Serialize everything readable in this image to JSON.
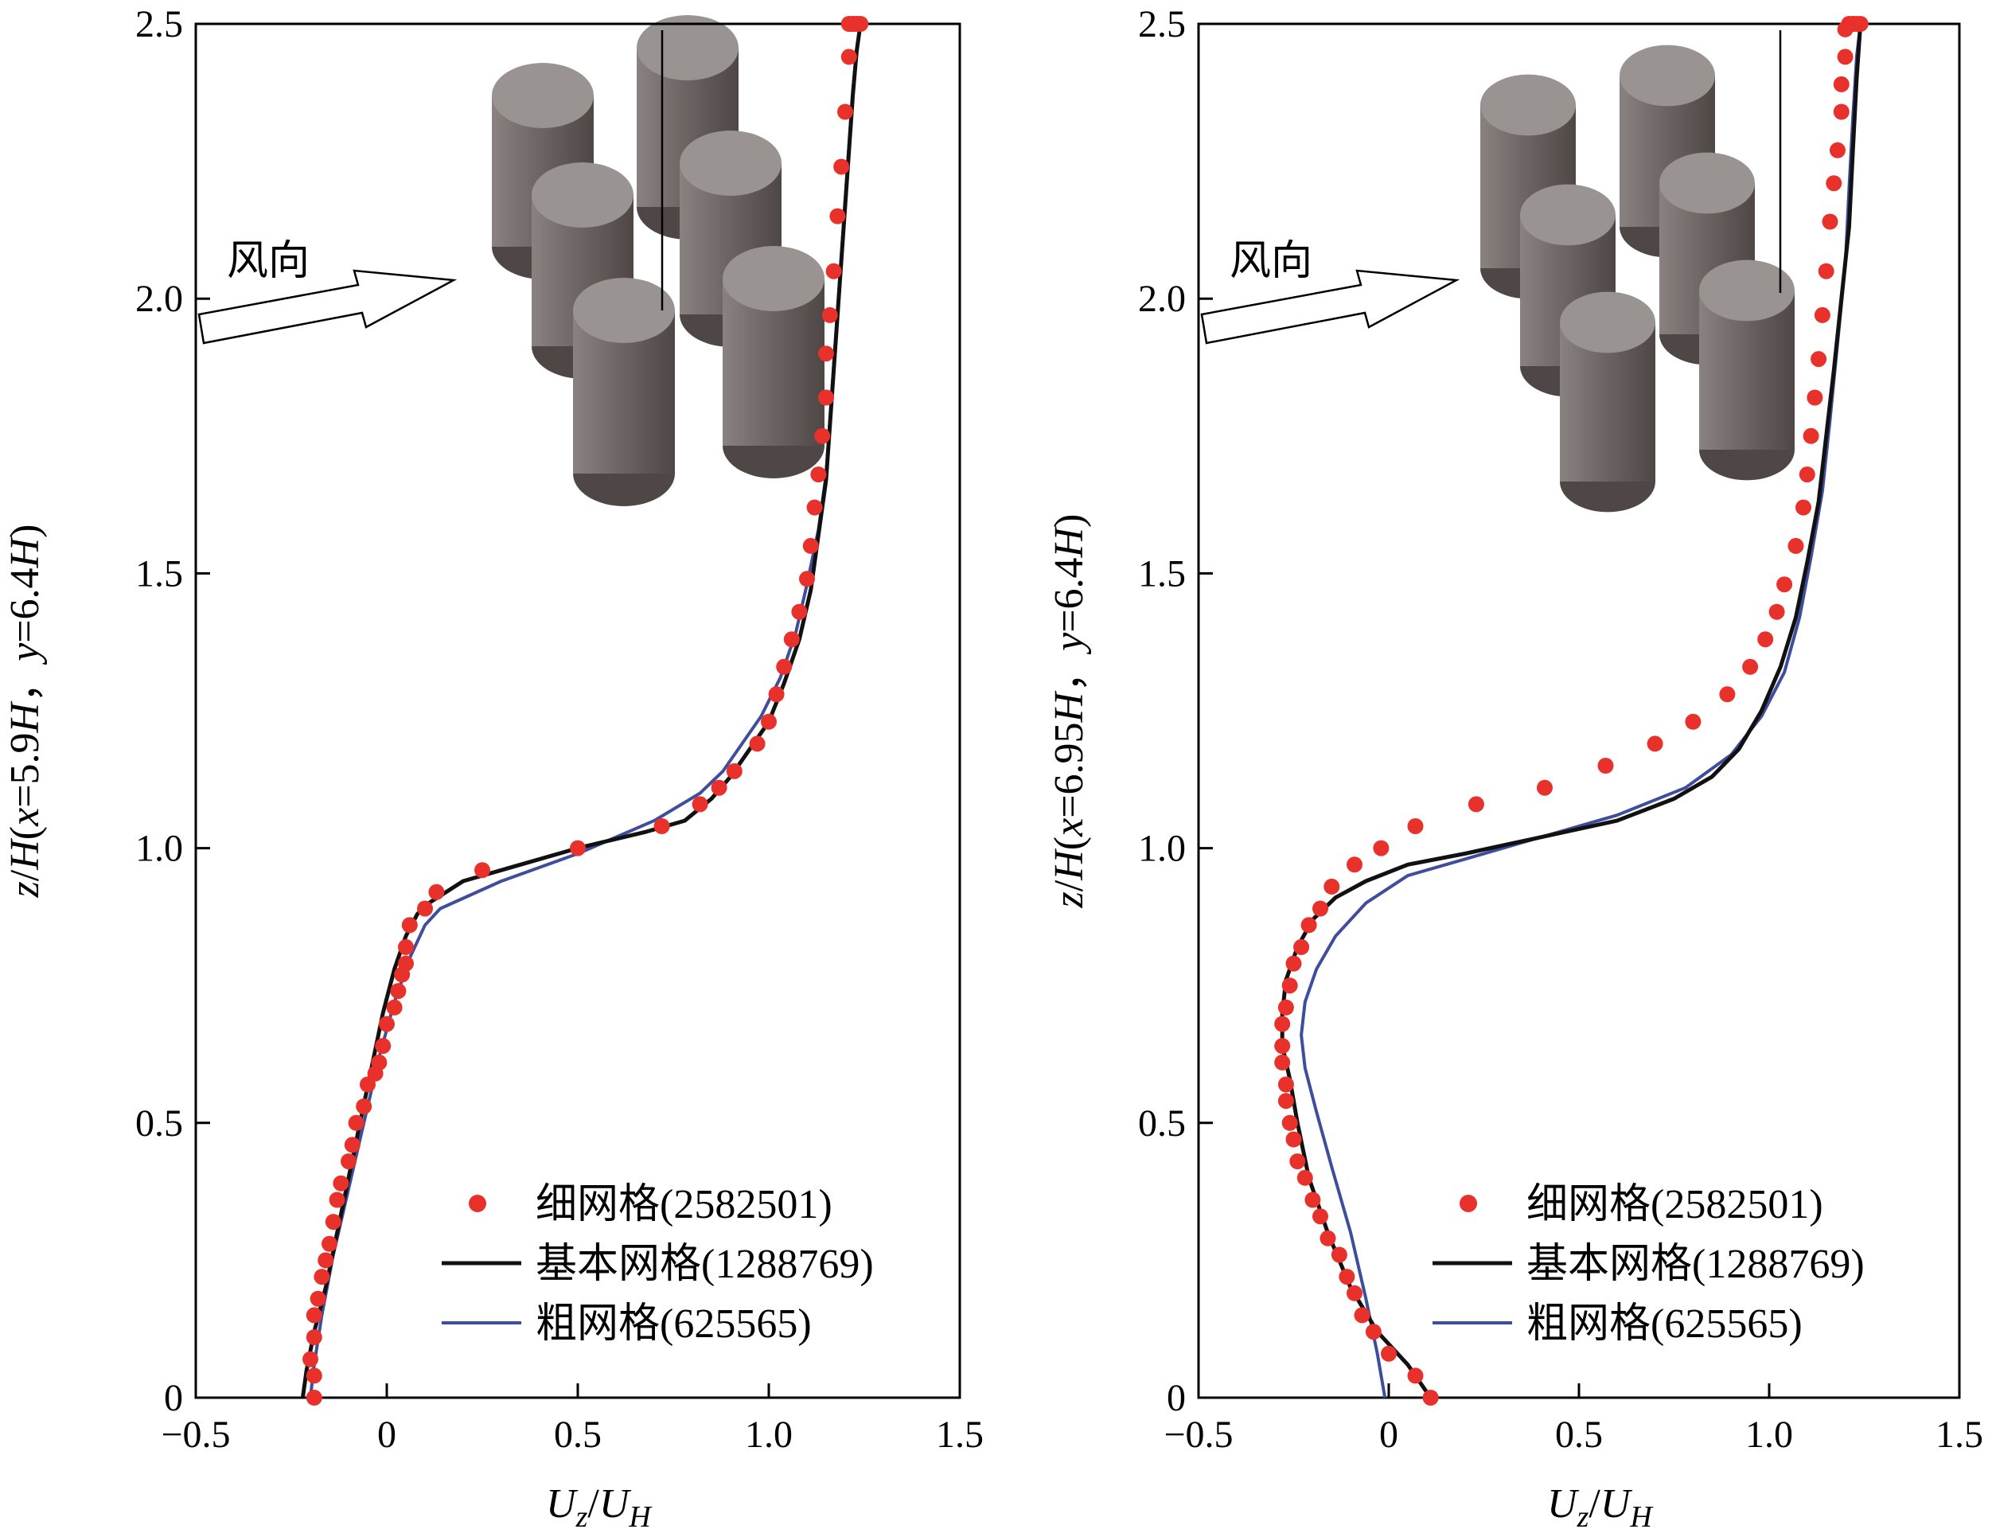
{
  "legend_labels": [
    "细网格(2582501)",
    "基本网格(1288769)",
    "粗网格(625565)"
  ],
  "wind_label": "风向",
  "colors": {
    "fine": "#e8312a",
    "base": "#111111",
    "coarse": "#3e4d9c",
    "cylinder": "#7d7573",
    "cylinder_top": "#999392"
  },
  "chart_data": [
    {
      "type": "line",
      "ylabel": "z/H(x=5.9H，y=6.4H)",
      "ylabel_parts": [
        "z",
        "/",
        "H",
        "(",
        "x",
        "=5.9",
        "H",
        "，",
        "y",
        "=6.4",
        "H",
        ")"
      ],
      "xlabel_parts": {
        "u": "U",
        "sub_z": "z",
        "slash": "/",
        "u2": "U",
        "sub_h": "H"
      },
      "xlim": [
        -0.5,
        1.5
      ],
      "ylim": [
        0,
        2.5
      ],
      "xticks": [
        -0.5,
        0,
        0.5,
        1.0,
        1.5
      ],
      "xtick_labels": [
        "−0.5",
        "0",
        "0.5",
        "1.0",
        "1.5"
      ],
      "yticks": [
        0,
        0.5,
        1.0,
        1.5,
        2.0,
        2.5
      ],
      "ytick_labels": [
        "0",
        "0.5",
        "1.0",
        "1.5",
        "2.0",
        "2.5"
      ],
      "series": [
        {
          "name": "细网格(2582501)",
          "style": "markers",
          "x": [
            -0.19,
            -0.19,
            -0.2,
            -0.19,
            -0.19,
            -0.18,
            -0.17,
            -0.16,
            -0.15,
            -0.14,
            -0.13,
            -0.12,
            -0.1,
            -0.09,
            -0.08,
            -0.06,
            -0.05,
            -0.03,
            -0.02,
            -0.01,
            0.0,
            0.02,
            0.03,
            0.04,
            0.05,
            0.05,
            0.06,
            0.1,
            0.13,
            0.25,
            0.5,
            0.72,
            0.82,
            0.87,
            0.91,
            0.97,
            1.0,
            1.02,
            1.04,
            1.06,
            1.08,
            1.1,
            1.11,
            1.12,
            1.13,
            1.14,
            1.15,
            1.15,
            1.16,
            1.17,
            1.18,
            1.19,
            1.2,
            1.21,
            1.21,
            1.22,
            1.22,
            1.23,
            1.23,
            1.24
          ],
          "y": [
            0.0,
            0.04,
            0.07,
            0.11,
            0.15,
            0.18,
            0.22,
            0.25,
            0.28,
            0.32,
            0.36,
            0.39,
            0.43,
            0.46,
            0.5,
            0.53,
            0.57,
            0.59,
            0.61,
            0.64,
            0.68,
            0.71,
            0.74,
            0.77,
            0.79,
            0.82,
            0.86,
            0.89,
            0.92,
            0.96,
            1.0,
            1.04,
            1.08,
            1.11,
            1.14,
            1.19,
            1.23,
            1.28,
            1.33,
            1.38,
            1.43,
            1.49,
            1.55,
            1.62,
            1.68,
            1.75,
            1.82,
            1.9,
            1.97,
            2.05,
            2.15,
            2.24,
            2.34,
            2.44,
            2.5,
            2.5,
            2.5,
            2.5,
            2.5,
            2.5
          ]
        },
        {
          "name": "基本网格(1288769)",
          "style": "line",
          "x": [
            -0.22,
            -0.21,
            -0.19,
            -0.16,
            -0.13,
            -0.1,
            -0.07,
            -0.04,
            -0.01,
            0.02,
            0.05,
            0.08,
            0.11,
            0.2,
            0.35,
            0.5,
            0.68,
            0.78,
            0.85,
            0.9,
            0.95,
            1.0,
            1.04,
            1.08,
            1.11,
            1.13,
            1.15,
            1.16,
            1.17,
            1.18,
            1.19,
            1.2,
            1.21,
            1.22,
            1.23,
            1.24
          ],
          "y": [
            0.0,
            0.05,
            0.12,
            0.2,
            0.3,
            0.4,
            0.5,
            0.6,
            0.7,
            0.78,
            0.84,
            0.88,
            0.9,
            0.94,
            0.97,
            1.0,
            1.03,
            1.05,
            1.09,
            1.13,
            1.18,
            1.23,
            1.3,
            1.38,
            1.47,
            1.57,
            1.67,
            1.77,
            1.87,
            1.97,
            2.07,
            2.17,
            2.27,
            2.37,
            2.45,
            2.5
          ]
        },
        {
          "name": "粗网格(625565)",
          "style": "line",
          "x": [
            -0.2,
            -0.19,
            -0.17,
            -0.14,
            -0.1,
            -0.06,
            -0.02,
            0.02,
            0.06,
            0.1,
            0.14,
            0.3,
            0.5,
            0.7,
            0.82,
            0.88,
            0.93,
            0.98,
            1.03,
            1.07,
            1.1,
            1.13,
            1.15,
            1.16,
            1.17,
            1.18,
            1.19,
            1.2,
            1.21,
            1.22,
            1.23,
            1.24
          ],
          "y": [
            0.0,
            0.06,
            0.15,
            0.26,
            0.38,
            0.5,
            0.62,
            0.72,
            0.8,
            0.86,
            0.89,
            0.94,
            0.99,
            1.05,
            1.1,
            1.14,
            1.19,
            1.24,
            1.31,
            1.39,
            1.48,
            1.58,
            1.68,
            1.78,
            1.88,
            1.98,
            2.08,
            2.18,
            2.28,
            2.38,
            2.45,
            2.5
          ]
        }
      ]
    },
    {
      "type": "line",
      "ylabel": "z/H(x=6.95H，y=6.4H)",
      "ylabel_parts": [
        "z",
        "/",
        "H",
        "(",
        "x",
        "=6.95",
        "H",
        "，",
        "y",
        "=6.4",
        "H",
        ")"
      ],
      "xlabel_parts": {
        "u": "U",
        "sub_z": "z",
        "slash": "/",
        "u2": "U",
        "sub_h": "H"
      },
      "xlim": [
        -0.5,
        1.5
      ],
      "ylim": [
        0,
        2.5
      ],
      "xticks": [
        -0.5,
        0,
        0.5,
        1.0,
        1.5
      ],
      "xtick_labels": [
        "−0.5",
        "0",
        "0.5",
        "1.0",
        "1.5"
      ],
      "yticks": [
        0,
        0.5,
        1.0,
        1.5,
        2.0,
        2.5
      ],
      "ytick_labels": [
        "0",
        "0.5",
        "1.0",
        "1.5",
        "2.0",
        "2.5"
      ],
      "series": [
        {
          "name": "细网格(2582501)",
          "style": "markers",
          "x": [
            0.11,
            0.07,
            0.0,
            -0.04,
            -0.07,
            -0.09,
            -0.11,
            -0.13,
            -0.16,
            -0.18,
            -0.2,
            -0.22,
            -0.24,
            -0.25,
            -0.26,
            -0.27,
            -0.27,
            -0.28,
            -0.28,
            -0.28,
            -0.27,
            -0.26,
            -0.25,
            -0.23,
            -0.21,
            -0.18,
            -0.15,
            -0.09,
            -0.02,
            0.07,
            0.23,
            0.41,
            0.57,
            0.7,
            0.8,
            0.89,
            0.95,
            0.99,
            1.02,
            1.04,
            1.07,
            1.09,
            1.1,
            1.11,
            1.12,
            1.13,
            1.14,
            1.15,
            1.16,
            1.17,
            1.18,
            1.19,
            1.19,
            1.2,
            1.2,
            1.21,
            1.22,
            1.22,
            1.23,
            1.24
          ],
          "y": [
            0.0,
            0.04,
            0.08,
            0.12,
            0.15,
            0.19,
            0.22,
            0.26,
            0.29,
            0.33,
            0.36,
            0.4,
            0.43,
            0.47,
            0.5,
            0.54,
            0.57,
            0.61,
            0.64,
            0.68,
            0.71,
            0.75,
            0.79,
            0.82,
            0.86,
            0.89,
            0.93,
            0.97,
            1.0,
            1.04,
            1.08,
            1.11,
            1.15,
            1.19,
            1.23,
            1.28,
            1.33,
            1.38,
            1.43,
            1.48,
            1.55,
            1.62,
            1.68,
            1.75,
            1.82,
            1.89,
            1.97,
            2.05,
            2.14,
            2.21,
            2.27,
            2.34,
            2.39,
            2.44,
            2.49,
            2.5,
            2.5,
            2.5,
            2.5,
            2.5
          ]
        },
        {
          "name": "基本网格(1288769)",
          "style": "line",
          "x": [
            0.11,
            0.05,
            -0.03,
            -0.1,
            -0.16,
            -0.21,
            -0.24,
            -0.26,
            -0.28,
            -0.28,
            -0.27,
            -0.24,
            -0.2,
            -0.14,
            -0.06,
            0.05,
            0.2,
            0.4,
            0.6,
            0.75,
            0.85,
            0.92,
            0.98,
            1.03,
            1.07,
            1.1,
            1.13,
            1.15,
            1.17,
            1.19,
            1.21,
            1.22,
            1.23,
            1.24
          ],
          "y": [
            0.0,
            0.06,
            0.12,
            0.2,
            0.3,
            0.4,
            0.5,
            0.58,
            0.64,
            0.7,
            0.76,
            0.82,
            0.87,
            0.91,
            0.94,
            0.97,
            0.99,
            1.02,
            1.05,
            1.09,
            1.13,
            1.18,
            1.25,
            1.33,
            1.42,
            1.52,
            1.63,
            1.75,
            1.87,
            2.0,
            2.13,
            2.27,
            2.4,
            2.5
          ]
        },
        {
          "name": "粗网格(625565)",
          "style": "line",
          "x": [
            -0.01,
            -0.03,
            -0.06,
            -0.1,
            -0.15,
            -0.19,
            -0.22,
            -0.23,
            -0.22,
            -0.19,
            -0.14,
            -0.06,
            0.05,
            0.2,
            0.4,
            0.6,
            0.78,
            0.9,
            0.98,
            1.04,
            1.08,
            1.11,
            1.14,
            1.16,
            1.18,
            1.2,
            1.21,
            1.22,
            1.23,
            1.24
          ],
          "y": [
            0.0,
            0.08,
            0.18,
            0.3,
            0.42,
            0.52,
            0.6,
            0.66,
            0.72,
            0.78,
            0.84,
            0.9,
            0.95,
            0.98,
            1.02,
            1.06,
            1.11,
            1.17,
            1.24,
            1.32,
            1.42,
            1.53,
            1.65,
            1.78,
            1.92,
            2.06,
            2.2,
            2.33,
            2.44,
            2.5
          ]
        }
      ]
    }
  ]
}
